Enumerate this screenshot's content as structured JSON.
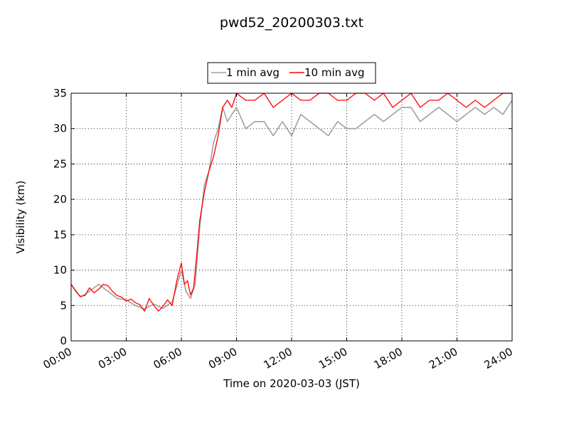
{
  "chart_data": {
    "type": "line",
    "title": "pwd52_20200303.txt",
    "xlabel": "Time on 2020-03-03 (JST)",
    "ylabel": "Visibility (km)",
    "xlim": [
      "00:00",
      "24:00"
    ],
    "ylim": [
      0,
      35
    ],
    "x_ticks": [
      "00:00",
      "03:00",
      "06:00",
      "09:00",
      "12:00",
      "15:00",
      "18:00",
      "21:00",
      "24:00"
    ],
    "y_ticks": [
      "0",
      "5",
      "10",
      "15",
      "20",
      "25",
      "30",
      "35"
    ],
    "grid": true,
    "legend_position": "top-center",
    "series": [
      {
        "name": "1 min avg",
        "color": "#a0a0a0",
        "x": [
          "00:00",
          "00:30",
          "01:00",
          "01:30",
          "02:00",
          "02:30",
          "03:00",
          "03:30",
          "04:00",
          "04:30",
          "05:00",
          "05:30",
          "06:00",
          "06:15",
          "06:30",
          "06:45",
          "07:00",
          "07:15",
          "07:30",
          "07:45",
          "08:00",
          "08:15",
          "08:30",
          "08:45",
          "09:00",
          "09:30",
          "10:00",
          "10:30",
          "11:00",
          "11:30",
          "12:00",
          "12:30",
          "13:00",
          "13:30",
          "14:00",
          "14:30",
          "15:00",
          "15:30",
          "16:00",
          "16:30",
          "17:00",
          "17:30",
          "18:00",
          "18:30",
          "19:00",
          "19:30",
          "20:00",
          "20:30",
          "21:00",
          "21:30",
          "22:00",
          "22:30",
          "23:00",
          "23:30",
          "24:00"
        ],
        "values": [
          8,
          6.2,
          7,
          8,
          7,
          6,
          5.8,
          5,
          4.5,
          5.2,
          4.6,
          5.5,
          10,
          7,
          6,
          8,
          16,
          22,
          24,
          28,
          30,
          33,
          31,
          32,
          33,
          30,
          31,
          31,
          29,
          31,
          29,
          32,
          31,
          30,
          29,
          31,
          30,
          30,
          31,
          32,
          31,
          32,
          33,
          33,
          31,
          32,
          33,
          32,
          31,
          32,
          33,
          32,
          33,
          32,
          34
        ]
      },
      {
        "name": "10 min avg",
        "color": "#ff0000",
        "x": [
          "00:00",
          "00:15",
          "00:30",
          "00:45",
          "01:00",
          "01:15",
          "01:30",
          "01:45",
          "02:00",
          "02:15",
          "02:30",
          "02:45",
          "03:00",
          "03:15",
          "03:30",
          "03:45",
          "04:00",
          "04:15",
          "04:30",
          "04:45",
          "05:00",
          "05:15",
          "05:30",
          "05:45",
          "06:00",
          "06:10",
          "06:20",
          "06:30",
          "06:40",
          "06:50",
          "07:00",
          "07:15",
          "07:30",
          "07:45",
          "08:00",
          "08:15",
          "08:30",
          "08:45",
          "09:00",
          "09:30",
          "10:00",
          "10:30",
          "11:00",
          "11:30",
          "12:00",
          "12:30",
          "13:00",
          "13:30",
          "14:00",
          "14:30",
          "15:00",
          "15:30",
          "16:00",
          "16:30",
          "17:00",
          "17:30",
          "18:00",
          "18:30",
          "19:00",
          "19:30",
          "20:00",
          "20:30",
          "21:00",
          "21:30",
          "22:00",
          "22:30",
          "23:00",
          "23:30",
          "24:00"
        ],
        "values": [
          8,
          7,
          6.3,
          6.4,
          7.5,
          6.8,
          7.3,
          8,
          7.8,
          7,
          6.4,
          6.2,
          5.6,
          5.9,
          5.4,
          5.1,
          4.2,
          6,
          5,
          4.2,
          4.9,
          5.8,
          5,
          8.5,
          11,
          8,
          8.5,
          6.5,
          7.5,
          12,
          17,
          21,
          24,
          26,
          29,
          33,
          34,
          33,
          35,
          34,
          34,
          35,
          33,
          34,
          35,
          34,
          34,
          35,
          35,
          34,
          34,
          35,
          35,
          34,
          35,
          33,
          34,
          35,
          33,
          34,
          34,
          35,
          34,
          33,
          34,
          33,
          34,
          35,
          35
        ]
      }
    ]
  }
}
